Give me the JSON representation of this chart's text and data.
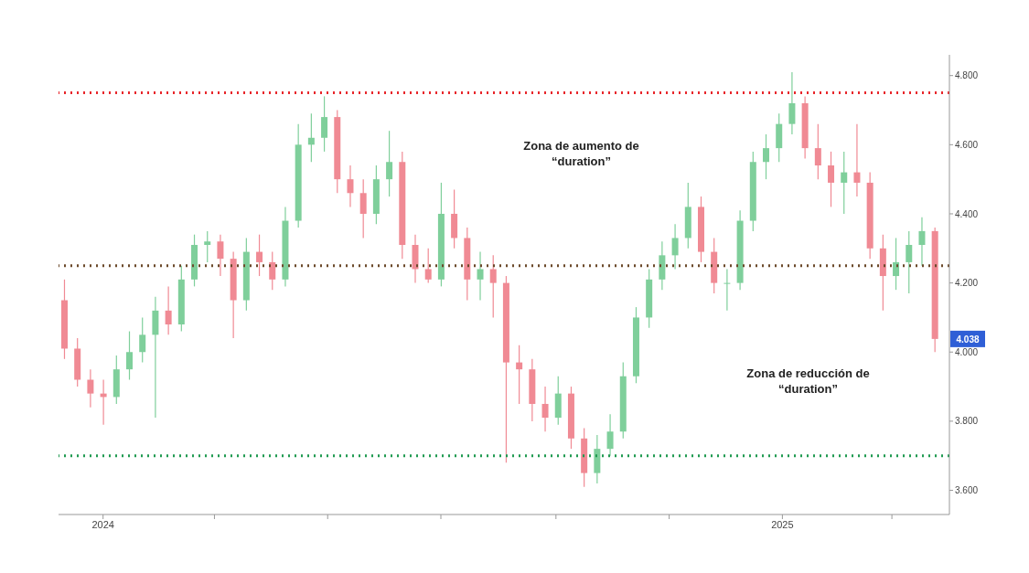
{
  "chart_data": {
    "type": "candlestick",
    "x": [
      "2023-12-11",
      "2023-12-18",
      "2023-12-25",
      "2024-01-01",
      "2024-01-08",
      "2024-01-15",
      "2024-01-22",
      "2024-01-29",
      "2024-02-05",
      "2024-02-12",
      "2024-02-19",
      "2024-02-26",
      "2024-03-04",
      "2024-03-11",
      "2024-03-18",
      "2024-03-25",
      "2024-04-01",
      "2024-04-08",
      "2024-04-15",
      "2024-04-22",
      "2024-04-29",
      "2024-05-06",
      "2024-05-13",
      "2024-05-20",
      "2024-05-27",
      "2024-06-03",
      "2024-06-10",
      "2024-06-17",
      "2024-06-24",
      "2024-07-01",
      "2024-07-08",
      "2024-07-15",
      "2024-07-22",
      "2024-07-29",
      "2024-08-05",
      "2024-08-12",
      "2024-08-19",
      "2024-08-26",
      "2024-09-02",
      "2024-09-09",
      "2024-09-16",
      "2024-09-23",
      "2024-09-30",
      "2024-10-07",
      "2024-10-14",
      "2024-10-21",
      "2024-10-28",
      "2024-11-04",
      "2024-11-11",
      "2024-11-18",
      "2024-11-25",
      "2024-12-02",
      "2024-12-09",
      "2024-12-16",
      "2024-12-23",
      "2024-12-30",
      "2025-01-06",
      "2025-01-13",
      "2025-01-20",
      "2025-01-27",
      "2025-02-03",
      "2025-02-10",
      "2025-02-17",
      "2025-02-24",
      "2025-03-03",
      "2025-03-10",
      "2025-03-17",
      "2025-03-24"
    ],
    "ohlc": [
      [
        4.15,
        4.21,
        3.98,
        4.01
      ],
      [
        4.01,
        4.04,
        3.9,
        3.92
      ],
      [
        3.92,
        3.95,
        3.84,
        3.88
      ],
      [
        3.88,
        3.92,
        3.79,
        3.87
      ],
      [
        3.87,
        3.99,
        3.85,
        3.95
      ],
      [
        3.95,
        4.06,
        3.92,
        4.0
      ],
      [
        4.0,
        4.1,
        3.97,
        4.05
      ],
      [
        4.05,
        4.16,
        3.81,
        4.12
      ],
      [
        4.12,
        4.19,
        4.05,
        4.08
      ],
      [
        4.08,
        4.25,
        4.06,
        4.21
      ],
      [
        4.21,
        4.34,
        4.19,
        4.31
      ],
      [
        4.31,
        4.35,
        4.26,
        4.32
      ],
      [
        4.32,
        4.34,
        4.22,
        4.27
      ],
      [
        4.27,
        4.29,
        4.04,
        4.15
      ],
      [
        4.15,
        4.33,
        4.12,
        4.29
      ],
      [
        4.29,
        4.34,
        4.22,
        4.26
      ],
      [
        4.26,
        4.29,
        4.18,
        4.21
      ],
      [
        4.21,
        4.42,
        4.19,
        4.38
      ],
      [
        4.38,
        4.66,
        4.36,
        4.6
      ],
      [
        4.6,
        4.69,
        4.55,
        4.62
      ],
      [
        4.62,
        4.74,
        4.58,
        4.68
      ],
      [
        4.68,
        4.7,
        4.46,
        4.5
      ],
      [
        4.5,
        4.54,
        4.42,
        4.46
      ],
      [
        4.46,
        4.5,
        4.33,
        4.4
      ],
      [
        4.4,
        4.54,
        4.37,
        4.5
      ],
      [
        4.5,
        4.64,
        4.45,
        4.55
      ],
      [
        4.55,
        4.58,
        4.27,
        4.31
      ],
      [
        4.31,
        4.34,
        4.2,
        4.24
      ],
      [
        4.24,
        4.3,
        4.2,
        4.21
      ],
      [
        4.21,
        4.49,
        4.19,
        4.4
      ],
      [
        4.4,
        4.47,
        4.3,
        4.33
      ],
      [
        4.33,
        4.36,
        4.15,
        4.21
      ],
      [
        4.21,
        4.29,
        4.15,
        4.24
      ],
      [
        4.24,
        4.28,
        4.1,
        4.2
      ],
      [
        4.2,
        4.22,
        3.68,
        3.97
      ],
      [
        3.97,
        4.02,
        3.85,
        3.95
      ],
      [
        3.95,
        3.98,
        3.8,
        3.85
      ],
      [
        3.85,
        3.9,
        3.77,
        3.81
      ],
      [
        3.81,
        3.93,
        3.79,
        3.88
      ],
      [
        3.88,
        3.9,
        3.72,
        3.75
      ],
      [
        3.75,
        3.78,
        3.61,
        3.65
      ],
      [
        3.65,
        3.76,
        3.62,
        3.72
      ],
      [
        3.72,
        3.82,
        3.7,
        3.77
      ],
      [
        3.77,
        3.97,
        3.75,
        3.93
      ],
      [
        3.93,
        4.13,
        3.91,
        4.1
      ],
      [
        4.1,
        4.24,
        4.07,
        4.21
      ],
      [
        4.21,
        4.32,
        4.18,
        4.28
      ],
      [
        4.28,
        4.37,
        4.24,
        4.33
      ],
      [
        4.33,
        4.49,
        4.3,
        4.42
      ],
      [
        4.42,
        4.45,
        4.26,
        4.29
      ],
      [
        4.29,
        4.33,
        4.17,
        4.2
      ],
      [
        4.2,
        4.24,
        4.12,
        4.2
      ],
      [
        4.2,
        4.41,
        4.18,
        4.38
      ],
      [
        4.38,
        4.58,
        4.35,
        4.55
      ],
      [
        4.55,
        4.63,
        4.5,
        4.59
      ],
      [
        4.59,
        4.69,
        4.55,
        4.66
      ],
      [
        4.66,
        4.81,
        4.63,
        4.72
      ],
      [
        4.72,
        4.74,
        4.56,
        4.59
      ],
      [
        4.59,
        4.66,
        4.5,
        4.54
      ],
      [
        4.54,
        4.58,
        4.42,
        4.49
      ],
      [
        4.49,
        4.58,
        4.4,
        4.52
      ],
      [
        4.52,
        4.66,
        4.45,
        4.49
      ],
      [
        4.49,
        4.52,
        4.27,
        4.3
      ],
      [
        4.3,
        4.34,
        4.12,
        4.22
      ],
      [
        4.22,
        4.33,
        4.18,
        4.26
      ],
      [
        4.26,
        4.35,
        4.17,
        4.31
      ],
      [
        4.31,
        4.39,
        4.25,
        4.35
      ],
      [
        4.35,
        4.36,
        4.0,
        4.038
      ]
    ],
    "colors": [
      "#f08a94",
      "#f08a94",
      "#f08a94",
      "#f08a94",
      "#7fcf9b",
      "#7fcf9b",
      "#7fcf9b",
      "#7fcf9b",
      "#f08a94",
      "#7fcf9b",
      "#7fcf9b",
      "#7fcf9b",
      "#f08a94",
      "#f08a94",
      "#7fcf9b",
      "#f08a94",
      "#f08a94",
      "#7fcf9b",
      "#7fcf9b",
      "#7fcf9b",
      "#7fcf9b",
      "#f08a94",
      "#f08a94",
      "#f08a94",
      "#7fcf9b",
      "#7fcf9b",
      "#f08a94",
      "#f08a94",
      "#f08a94",
      "#7fcf9b",
      "#f08a94",
      "#f08a94",
      "#7fcf9b",
      "#f08a94",
      "#f08a94",
      "#f08a94",
      "#f08a94",
      "#f08a94",
      "#7fcf9b",
      "#f08a94",
      "#f08a94",
      "#7fcf9b",
      "#7fcf9b",
      "#7fcf9b",
      "#7fcf9b",
      "#7fcf9b",
      "#7fcf9b",
      "#7fcf9b",
      "#7fcf9b",
      "#f08a94",
      "#f08a94",
      "#7fcf9b",
      "#7fcf9b",
      "#7fcf9b",
      "#7fcf9b",
      "#7fcf9b",
      "#7fcf9b",
      "#f08a94",
      "#f08a94",
      "#f08a94",
      "#7fcf9b",
      "#f08a94",
      "#f08a94",
      "#f08a94",
      "#7fcf9b",
      "#7fcf9b",
      "#7fcf9b",
      "#f08a94"
    ],
    "xlim": [
      "2023-12-08",
      "2025-04-01"
    ],
    "xticks": [
      {
        "value": "2024-01-01",
        "label": "2024"
      },
      {
        "value": "2024-03-01",
        "label": null
      },
      {
        "value": "2024-05-01",
        "label": null
      },
      {
        "value": "2024-07-01",
        "label": null
      },
      {
        "value": "2024-09-01",
        "label": null
      },
      {
        "value": "2024-11-01",
        "label": null
      },
      {
        "value": "2025-01-01",
        "label": "2025"
      },
      {
        "value": "2025-03-01",
        "label": null
      }
    ],
    "ylim": [
      3.53,
      4.86
    ],
    "yticks": [
      {
        "value": 3.6,
        "label": "3.600"
      },
      {
        "value": 3.8,
        "label": "3.800"
      },
      {
        "value": 4.0,
        "label": "4.000"
      },
      {
        "value": 4.2,
        "label": "4.200"
      },
      {
        "value": 4.4,
        "label": "4.400"
      },
      {
        "value": 4.6,
        "label": "4.600"
      },
      {
        "value": 4.8,
        "label": "4.800"
      }
    ],
    "ref_lines": [
      {
        "axis": "y",
        "value": 4.75,
        "color": "#e8262b",
        "line_style": "dotted"
      },
      {
        "axis": "y",
        "value": 4.25,
        "color": "#6b4a2b",
        "line_style": "dotted"
      },
      {
        "axis": "y",
        "value": 3.7,
        "color": "#1f9a50",
        "line_style": "dotted"
      }
    ],
    "annotations": [
      "Zona de aumento de “duration”",
      "Zona de reducción de “duration”",
      {
        "text": "4.038",
        "x": "2025-03-24",
        "y": 4.038
      }
    ],
    "grid": false,
    "legend": false
  }
}
